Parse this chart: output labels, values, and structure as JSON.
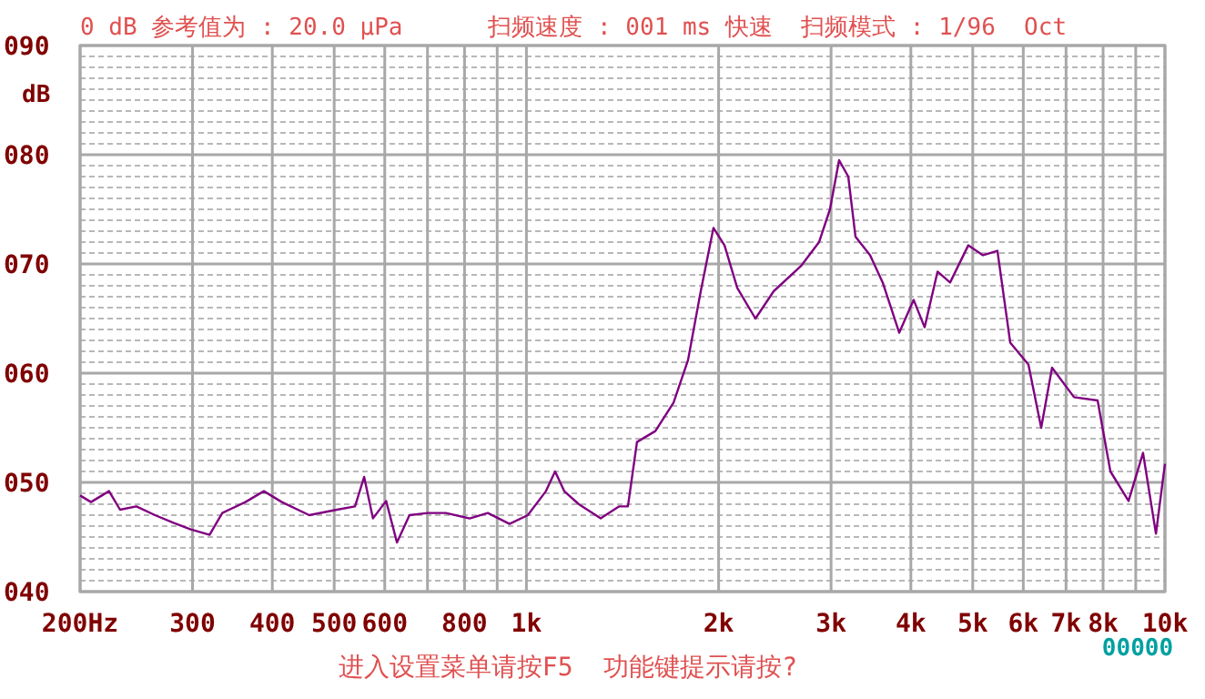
{
  "chart_data": {
    "type": "line",
    "title": "0 dB 参考值为 : 20.0 μPa      扫频速度 : 001 ms 快速  扫频模式 : 1/96  Oct",
    "ylabel": "dB",
    "annotations": [
      "进入设置菜单请按F5  功能键提示请按?",
      "00000"
    ],
    "log": "x",
    "grid": true,
    "marker": "none",
    "line_style": "solid",
    "xlim": [
      200,
      10000
    ],
    "ylim": [
      40,
      90
    ],
    "xticks": [
      {
        "value": 200,
        "label": "200Hz"
      },
      300,
      400,
      500,
      600,
      {
        "value": 700,
        "label": null
      },
      800,
      {
        "value": 900,
        "label": null
      },
      {
        "value": 1000,
        "label": "1k"
      },
      {
        "value": 2000,
        "label": "2k"
      },
      {
        "value": 3000,
        "label": "3k"
      },
      {
        "value": 4000,
        "label": "4k"
      },
      {
        "value": 5000,
        "label": "5k"
      },
      {
        "value": 6000,
        "label": "6k"
      },
      {
        "value": 7000,
        "label": "7k"
      },
      {
        "value": 8000,
        "label": "8k"
      },
      {
        "value": 9000,
        "label": null
      },
      {
        "value": 10000,
        "label": "10k"
      }
    ],
    "yticks": [
      {
        "value": 40,
        "label": "040"
      },
      {
        "value": 41,
        "label": null
      },
      {
        "value": 42,
        "label": null
      },
      {
        "value": 43,
        "label": null
      },
      {
        "value": 44,
        "label": null
      },
      {
        "value": 45,
        "label": null
      },
      {
        "value": 46,
        "label": null
      },
      {
        "value": 47,
        "label": null
      },
      {
        "value": 48,
        "label": null
      },
      {
        "value": 49,
        "label": null
      },
      {
        "value": 50,
        "label": "050"
      },
      {
        "value": 51,
        "label": null
      },
      {
        "value": 52,
        "label": null
      },
      {
        "value": 53,
        "label": null
      },
      {
        "value": 54,
        "label": null
      },
      {
        "value": 55,
        "label": null
      },
      {
        "value": 56,
        "label": null
      },
      {
        "value": 57,
        "label": null
      },
      {
        "value": 58,
        "label": null
      },
      {
        "value": 59,
        "label": null
      },
      {
        "value": 60,
        "label": "060"
      },
      {
        "value": 61,
        "label": null
      },
      {
        "value": 62,
        "label": null
      },
      {
        "value": 63,
        "label": null
      },
      {
        "value": 64,
        "label": null
      },
      {
        "value": 65,
        "label": null
      },
      {
        "value": 66,
        "label": null
      },
      {
        "value": 67,
        "label": null
      },
      {
        "value": 68,
        "label": null
      },
      {
        "value": 69,
        "label": null
      },
      {
        "value": 70,
        "label": "070"
      },
      {
        "value": 71,
        "label": null
      },
      {
        "value": 72,
        "label": null
      },
      {
        "value": 73,
        "label": null
      },
      {
        "value": 74,
        "label": null
      },
      {
        "value": 75,
        "label": null
      },
      {
        "value": 76,
        "label": null
      },
      {
        "value": 77,
        "label": null
      },
      {
        "value": 78,
        "label": null
      },
      {
        "value": 79,
        "label": null
      },
      {
        "value": 80,
        "label": "080"
      },
      {
        "value": 81,
        "label": null
      },
      {
        "value": 82,
        "label": null
      },
      {
        "value": 83,
        "label": null
      },
      {
        "value": 84,
        "label": null
      },
      {
        "value": 85,
        "label": null
      },
      {
        "value": 86,
        "label": null
      },
      {
        "value": 87,
        "label": null
      },
      {
        "value": 88,
        "label": null
      },
      {
        "value": 89,
        "label": null
      },
      {
        "value": 90,
        "label": "090"
      }
    ],
    "x": [
      200,
      208,
      222,
      231,
      245,
      262,
      280,
      298,
      319,
      334,
      363,
      388,
      414,
      457,
      505,
      539,
      557,
      575,
      603,
      627,
      656,
      701,
      748,
      815,
      870,
      941,
      1005,
      1073,
      1109,
      1146,
      1208,
      1307,
      1396,
      1442,
      1490,
      1592,
      1700,
      1791,
      1875,
      1963,
      2043,
      2139,
      2284,
      2439,
      2690,
      2873,
      2988,
      3088,
      3192,
      3276,
      3454,
      3614,
      3836,
      4041,
      4204,
      4404,
      4608,
      4920,
      5188,
      5466,
      5724,
      6112,
      6400,
      6656,
      7204,
      7844,
      8214,
      8770,
      9240,
      9680,
      10000
    ],
    "series": [
      {
        "color": "#800080",
        "values": [
          48.8,
          48.2,
          49.2,
          47.5,
          47.8,
          47,
          46.3,
          45.7,
          45.2,
          47.2,
          48.2,
          49.2,
          48.2,
          47,
          47.5,
          47.8,
          50.5,
          46.7,
          48.3,
          44.5,
          47,
          47.2,
          47.2,
          46.7,
          47.2,
          46.2,
          47,
          49.2,
          51,
          49.2,
          48,
          46.7,
          47.8,
          47.8,
          53.7,
          54.7,
          57.3,
          61.2,
          67.5,
          73.3,
          71.7,
          67.8,
          65,
          67.5,
          69.8,
          72,
          75,
          79.5,
          78,
          72.5,
          70.8,
          68.3,
          63.7,
          66.7,
          64.2,
          69.3,
          68.3,
          71.7,
          70.8,
          71.2,
          62.8,
          60.8,
          55,
          60.5,
          57.8,
          57.5,
          51,
          48.3,
          52.7,
          45.3,
          51.7
        ]
      }
    ]
  }
}
